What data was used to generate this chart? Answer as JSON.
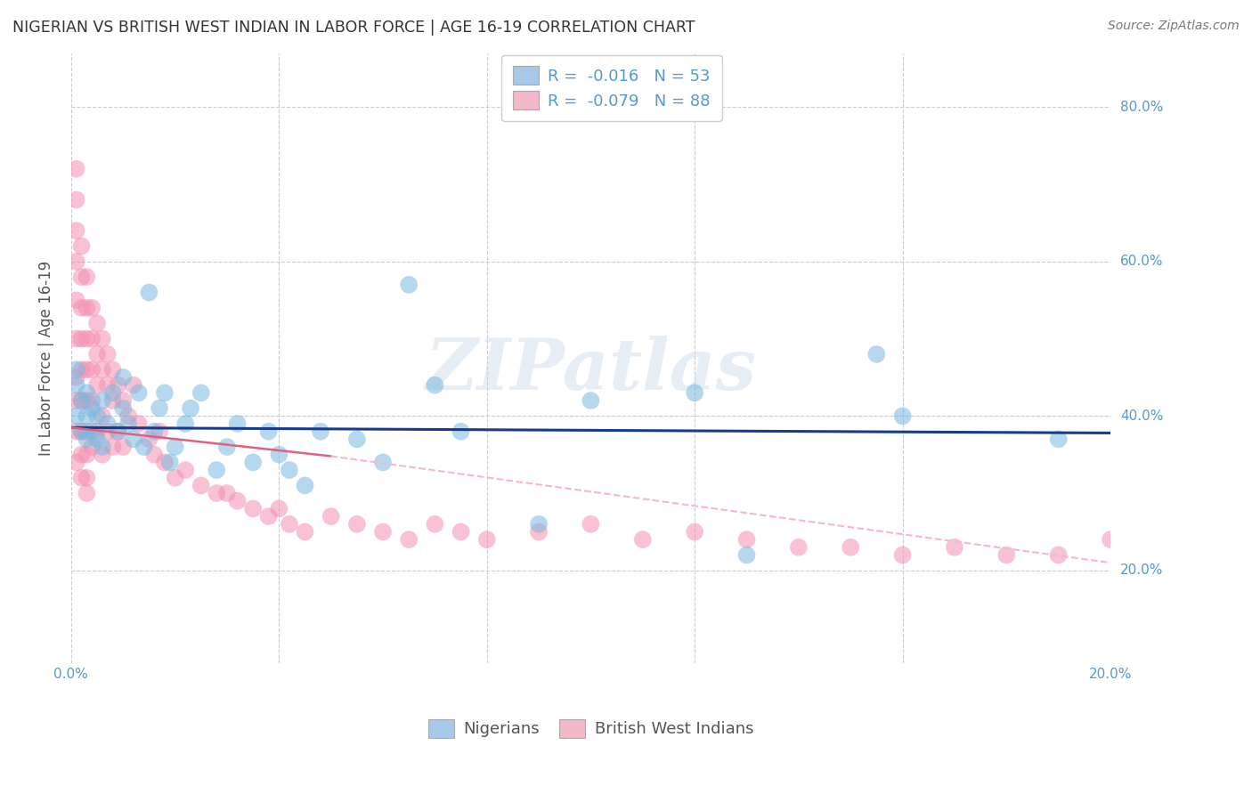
{
  "title": "NIGERIAN VS BRITISH WEST INDIAN IN LABOR FORCE | AGE 16-19 CORRELATION CHART",
  "source": "Source: ZipAtlas.com",
  "ylabel": "In Labor Force | Age 16-19",
  "xlim": [
    0.0,
    0.2
  ],
  "ylim": [
    0.08,
    0.87
  ],
  "yticks": [
    0.2,
    0.4,
    0.6,
    0.8
  ],
  "watermark": "ZIPatlas",
  "legend_label1": "R =  -0.016   N = 53",
  "legend_label2": "R =  -0.079   N = 88",
  "legend_color1": "#a8c8e8",
  "legend_color2": "#f4b8c8",
  "scatter_color1": "#7ab8e0",
  "scatter_color2": "#f490b0",
  "line_color1": "#1a3a8a",
  "line_color2_solid": "#e06080",
  "line_color2_dash": "#f4b8c8",
  "background_color": "#ffffff",
  "grid_color": "#cccccc",
  "axis_label_color": "#5599cc",
  "title_color": "#333333",
  "nigerian_x": [
    0.001,
    0.001,
    0.001,
    0.002,
    0.002,
    0.003,
    0.003,
    0.003,
    0.004,
    0.004,
    0.005,
    0.005,
    0.006,
    0.006,
    0.007,
    0.008,
    0.009,
    0.01,
    0.01,
    0.011,
    0.012,
    0.013,
    0.014,
    0.015,
    0.016,
    0.017,
    0.018,
    0.019,
    0.02,
    0.022,
    0.023,
    0.025,
    0.028,
    0.03,
    0.032,
    0.035,
    0.038,
    0.04,
    0.042,
    0.045,
    0.048,
    0.055,
    0.06,
    0.065,
    0.07,
    0.075,
    0.09,
    0.1,
    0.12,
    0.13,
    0.155,
    0.16,
    0.19
  ],
  "nigerian_y": [
    0.4,
    0.44,
    0.46,
    0.38,
    0.42,
    0.37,
    0.4,
    0.43,
    0.38,
    0.41,
    0.37,
    0.4,
    0.36,
    0.42,
    0.39,
    0.43,
    0.38,
    0.41,
    0.45,
    0.39,
    0.37,
    0.43,
    0.36,
    0.56,
    0.38,
    0.41,
    0.43,
    0.34,
    0.36,
    0.39,
    0.41,
    0.43,
    0.33,
    0.36,
    0.39,
    0.34,
    0.38,
    0.35,
    0.33,
    0.31,
    0.38,
    0.37,
    0.34,
    0.57,
    0.44,
    0.38,
    0.26,
    0.42,
    0.43,
    0.22,
    0.48,
    0.4,
    0.37
  ],
  "bwi_x": [
    0.001,
    0.001,
    0.001,
    0.001,
    0.001,
    0.001,
    0.001,
    0.001,
    0.001,
    0.001,
    0.002,
    0.002,
    0.002,
    0.002,
    0.002,
    0.002,
    0.002,
    0.002,
    0.002,
    0.003,
    0.003,
    0.003,
    0.003,
    0.003,
    0.003,
    0.003,
    0.003,
    0.003,
    0.004,
    0.004,
    0.004,
    0.004,
    0.004,
    0.005,
    0.005,
    0.005,
    0.005,
    0.006,
    0.006,
    0.006,
    0.006,
    0.007,
    0.007,
    0.007,
    0.008,
    0.008,
    0.008,
    0.009,
    0.009,
    0.01,
    0.01,
    0.011,
    0.012,
    0.013,
    0.015,
    0.016,
    0.017,
    0.018,
    0.02,
    0.022,
    0.025,
    0.028,
    0.03,
    0.032,
    0.035,
    0.038,
    0.04,
    0.042,
    0.045,
    0.05,
    0.055,
    0.06,
    0.065,
    0.07,
    0.075,
    0.08,
    0.09,
    0.1,
    0.11,
    0.12,
    0.13,
    0.14,
    0.15,
    0.16,
    0.17,
    0.18,
    0.19,
    0.2
  ],
  "bwi_y": [
    0.72,
    0.68,
    0.64,
    0.6,
    0.55,
    0.5,
    0.45,
    0.42,
    0.38,
    0.34,
    0.62,
    0.58,
    0.54,
    0.5,
    0.46,
    0.42,
    0.38,
    0.35,
    0.32,
    0.58,
    0.54,
    0.5,
    0.46,
    0.42,
    0.38,
    0.35,
    0.32,
    0.3,
    0.54,
    0.5,
    0.46,
    0.42,
    0.36,
    0.52,
    0.48,
    0.44,
    0.38,
    0.5,
    0.46,
    0.4,
    0.35,
    0.48,
    0.44,
    0.38,
    0.46,
    0.42,
    0.36,
    0.44,
    0.38,
    0.42,
    0.36,
    0.4,
    0.44,
    0.39,
    0.37,
    0.35,
    0.38,
    0.34,
    0.32,
    0.33,
    0.31,
    0.3,
    0.3,
    0.29,
    0.28,
    0.27,
    0.28,
    0.26,
    0.25,
    0.27,
    0.26,
    0.25,
    0.24,
    0.26,
    0.25,
    0.24,
    0.25,
    0.26,
    0.24,
    0.25,
    0.24,
    0.23,
    0.23,
    0.22,
    0.23,
    0.22,
    0.22,
    0.24
  ]
}
